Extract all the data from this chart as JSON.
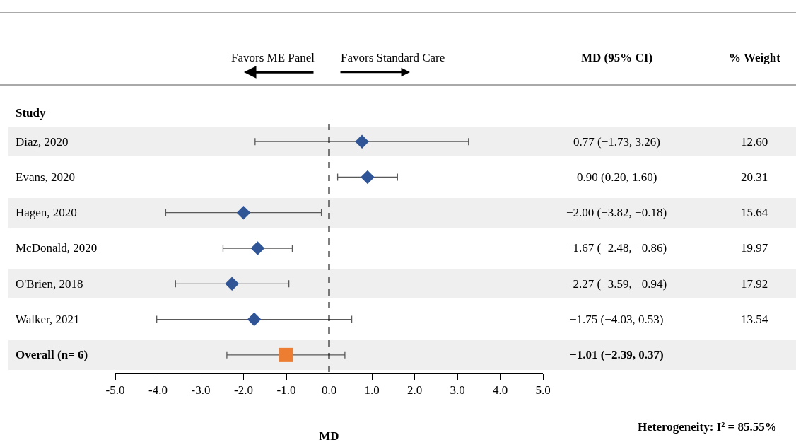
{
  "chart_data": {
    "type": "scatter",
    "orientation": "horizontal",
    "xlabel": "MD",
    "categories": [
      "Diaz, 2020",
      "Evans, 2020",
      "Hagen, 2020",
      "McDonald, 2020",
      "O'Brien, 2018",
      "Walker, 2021",
      "Overall (n= 6)"
    ],
    "series": [
      {
        "color": "#2f5597",
        "marker": "diamond",
        "values": [
          0.77,
          0.9,
          -2.0,
          -1.67,
          -2.27,
          -1.75,
          null
        ],
        "errors": [
          [
            -1.73,
            3.26
          ],
          [
            0.2,
            1.6
          ],
          [
            -3.82,
            -0.18
          ],
          [
            -2.48,
            -0.86
          ],
          [
            -3.59,
            -0.94
          ],
          [
            -4.03,
            0.53
          ],
          null
        ]
      },
      {
        "color": "#ed7d31",
        "marker": "square",
        "values": [
          null,
          null,
          null,
          null,
          null,
          null,
          -1.01
        ],
        "errors": [
          null,
          null,
          null,
          null,
          null,
          null,
          [
            -2.39,
            0.37
          ]
        ]
      }
    ],
    "xlim": [
      -5,
      5
    ],
    "xticks": [
      {
        "value": -5,
        "label": "-5.0"
      },
      {
        "value": -4,
        "label": "-4.0"
      },
      {
        "value": -3,
        "label": "-3.0"
      },
      {
        "value": -2,
        "label": "-2.0"
      },
      {
        "value": -1,
        "label": "-1.0"
      },
      {
        "value": 0,
        "label": "0.0"
      },
      {
        "value": 1,
        "label": "1.0"
      },
      {
        "value": 2,
        "label": "2.0"
      },
      {
        "value": 3,
        "label": "3.0"
      },
      {
        "value": 4,
        "label": "4.0"
      },
      {
        "value": 5,
        "label": "5.0"
      }
    ],
    "ref_lines": [
      {
        "axis": "x",
        "value": 0,
        "color": "#000000",
        "line_style": "dashed"
      }
    ],
    "grid": false,
    "annotations": [
      "Favors ME Panel",
      "Favors Standard Care",
      "MD (95% CI)",
      "% Weight",
      "Study",
      "Heterogeneity: I² = 85.55%",
      "0.77 (−1.73, 3.26)",
      "0.90 (0.20, 1.60)",
      "−2.00 (−3.82, −0.18)",
      "−1.67 (−2.48, −0.86)",
      "−2.27 (−3.59, −0.94)",
      "−1.75 (−4.03, 0.53)",
      "−1.01 (−2.39, 0.37)",
      "12.60",
      "20.31",
      "15.64",
      "19.97",
      "17.92",
      "13.54"
    ]
  }
}
